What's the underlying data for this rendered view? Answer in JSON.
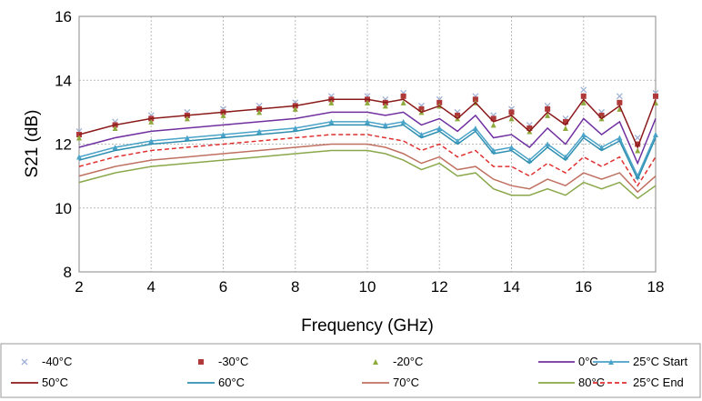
{
  "chart_data": {
    "type": "line",
    "xlabel": "Frequency (GHz)",
    "ylabel": "S21 (dB)",
    "xlim": [
      2,
      18
    ],
    "ylim": [
      8,
      16
    ],
    "x_ticks": [
      "2",
      "4",
      "6",
      "8",
      "10",
      "12",
      "14",
      "16",
      "18"
    ],
    "y_ticks": [
      "8",
      "10",
      "12",
      "14",
      "16"
    ],
    "grid": true,
    "legend_position": "bottom",
    "x": [
      2,
      3,
      4,
      5,
      6,
      7,
      8,
      9,
      10,
      10.5,
      11,
      11.5,
      12,
      12.5,
      13,
      13.5,
      14,
      14.5,
      15,
      15.5,
      16,
      16.5,
      17,
      17.5,
      18
    ],
    "series": [
      {
        "name": "-40°C",
        "color": "#9fb2d6",
        "marker": "x",
        "line": "none",
        "values": [
          12.4,
          12.7,
          12.9,
          13.0,
          13.1,
          13.2,
          13.3,
          13.5,
          13.5,
          13.4,
          13.6,
          13.2,
          13.4,
          13.0,
          13.5,
          12.9,
          13.1,
          12.6,
          13.2,
          12.8,
          13.7,
          13.0,
          13.5,
          12.2,
          13.6
        ]
      },
      {
        "name": "-30°C",
        "color": "#b03a3a",
        "marker": "square",
        "line": "none",
        "values": [
          12.3,
          12.6,
          12.8,
          12.9,
          13.0,
          13.1,
          13.2,
          13.4,
          13.4,
          13.3,
          13.5,
          13.1,
          13.3,
          12.9,
          13.4,
          12.8,
          13.0,
          12.5,
          13.1,
          12.7,
          13.5,
          12.9,
          13.3,
          12.0,
          13.5
        ]
      },
      {
        "name": "-20°C",
        "color": "#8faa3c",
        "marker": "triangle",
        "line": "none",
        "values": [
          12.2,
          12.5,
          12.7,
          12.8,
          12.9,
          13.0,
          13.1,
          13.3,
          13.3,
          13.2,
          13.3,
          13.0,
          13.2,
          12.8,
          13.3,
          12.6,
          12.8,
          12.4,
          12.9,
          12.5,
          13.3,
          12.8,
          13.1,
          11.8,
          13.3
        ]
      },
      {
        "name": "0°C",
        "color": "#7030a0",
        "marker": "none",
        "line": "solid",
        "values": [
          11.9,
          12.2,
          12.4,
          12.5,
          12.6,
          12.7,
          12.8,
          13.0,
          13.0,
          12.9,
          13.0,
          12.6,
          12.8,
          12.4,
          12.9,
          12.2,
          12.3,
          11.9,
          12.5,
          12.0,
          12.8,
          12.3,
          12.7,
          11.4,
          12.8
        ]
      },
      {
        "name": "25°C Start",
        "color": "#4aa3c8",
        "marker": "triangle",
        "line": "solid",
        "values": [
          11.6,
          11.9,
          12.1,
          12.2,
          12.3,
          12.4,
          12.5,
          12.7,
          12.7,
          12.6,
          12.7,
          12.3,
          12.5,
          12.1,
          12.5,
          11.8,
          11.9,
          11.5,
          12.0,
          11.6,
          12.3,
          11.9,
          12.2,
          11.0,
          12.3
        ]
      },
      {
        "name": "50°C",
        "color": "#8b1a1a",
        "marker": "none",
        "line": "solid",
        "values": [
          12.3,
          12.6,
          12.8,
          12.9,
          13.0,
          13.1,
          13.2,
          13.4,
          13.4,
          13.3,
          13.4,
          13.0,
          13.2,
          12.8,
          13.3,
          12.7,
          12.9,
          12.4,
          13.0,
          12.6,
          13.4,
          12.8,
          13.2,
          11.9,
          13.4
        ]
      },
      {
        "name": "60°C",
        "color": "#2e8fb0",
        "marker": "none",
        "line": "solid",
        "values": [
          11.5,
          11.8,
          12.0,
          12.1,
          12.2,
          12.3,
          12.4,
          12.6,
          12.6,
          12.5,
          12.6,
          12.2,
          12.4,
          12.0,
          12.4,
          11.7,
          11.8,
          11.4,
          11.9,
          11.5,
          12.2,
          11.8,
          12.1,
          10.9,
          12.2
        ]
      },
      {
        "name": "70°C",
        "color": "#c07060",
        "marker": "none",
        "line": "solid",
        "values": [
          11.0,
          11.3,
          11.5,
          11.6,
          11.7,
          11.8,
          11.9,
          12.0,
          12.0,
          11.9,
          11.7,
          11.4,
          11.6,
          11.2,
          11.3,
          10.9,
          10.7,
          10.6,
          10.9,
          10.7,
          11.1,
          10.9,
          11.1,
          10.5,
          11.0
        ]
      },
      {
        "name": "80°C",
        "color": "#8aa84a",
        "marker": "none",
        "line": "solid",
        "values": [
          10.8,
          11.1,
          11.3,
          11.4,
          11.5,
          11.6,
          11.7,
          11.8,
          11.8,
          11.7,
          11.5,
          11.2,
          11.4,
          11.0,
          11.1,
          10.6,
          10.4,
          10.4,
          10.6,
          10.4,
          10.8,
          10.6,
          10.8,
          10.3,
          10.7
        ]
      },
      {
        "name": "25°C End",
        "color": "#e03030",
        "marker": "none",
        "line": "dashed",
        "values": [
          11.3,
          11.6,
          11.8,
          11.9,
          12.0,
          12.1,
          12.2,
          12.3,
          12.3,
          12.2,
          12.1,
          11.8,
          12.0,
          11.6,
          11.8,
          11.3,
          11.3,
          11.0,
          11.4,
          11.1,
          11.6,
          11.3,
          11.6,
          10.7,
          11.6
        ]
      }
    ]
  }
}
